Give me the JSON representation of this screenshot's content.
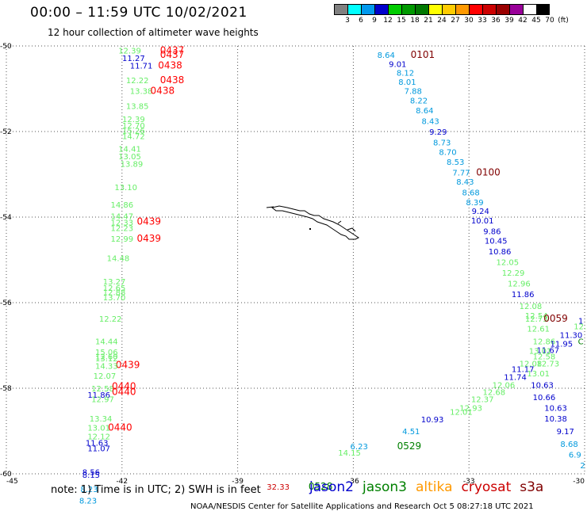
{
  "header": {
    "title": "00:00 – 11:59 UTC 10/02/2021",
    "subtitle": "12 hour collection of altimeter wave heights"
  },
  "colorbar": {
    "colors": [
      "#808080",
      "#00ffff",
      "#0099ee",
      "#0000cc",
      "#00cc00",
      "#009900",
      "#007700",
      "#ffff00",
      "#ffcc00",
      "#ff9900",
      "#ff0000",
      "#cc0000",
      "#990000",
      "#990099",
      "#ffffff",
      "#000000"
    ],
    "labels": [
      "3",
      "6",
      "9",
      "12",
      "15",
      "18",
      "21",
      "24",
      "27",
      "30",
      "33",
      "36",
      "39",
      "42",
      "45",
      "70",
      "(ft)"
    ]
  },
  "axes": {
    "lat_labels": [
      "-50",
      "-52",
      "-54",
      "-56",
      "-58",
      "-60"
    ],
    "lon_labels": [
      "-45",
      "-42",
      "-39",
      "-36",
      "-33",
      "-30"
    ]
  },
  "colors": {
    "jason2": "#0000cc",
    "jason3": "#008000",
    "altika": "#ff9900",
    "cryosat": "#cc0000",
    "s3a": "#800000",
    "light_green": "#66ee66",
    "light_blue": "#0099dd",
    "times_red": "#ff0000"
  },
  "tracks": {
    "left": [
      {
        "text": "12.39",
        "lat": -50.1,
        "lon": -41.8,
        "c": "light_green"
      },
      {
        "text": "0437",
        "lat": -50.1,
        "lon": -40.7,
        "c": "times_red"
      },
      {
        "text": "11.27",
        "lat": -50.28,
        "lon": -41.7,
        "c": "jason2"
      },
      {
        "text": "0437",
        "lat": -50.2,
        "lon": -40.7,
        "c": "times_red"
      },
      {
        "text": "11.71",
        "lat": -50.45,
        "lon": -41.5,
        "c": "jason2"
      },
      {
        "text": "0438",
        "lat": -50.45,
        "lon": -40.75,
        "c": "times_red"
      },
      {
        "text": "12.22",
        "lat": -50.8,
        "lon": -41.6,
        "c": "light_green"
      },
      {
        "text": "0438",
        "lat": -50.8,
        "lon": -40.7,
        "c": "times_red"
      },
      {
        "text": "13.38",
        "lat": -51.05,
        "lon": -41.5,
        "c": "light_green"
      },
      {
        "text": "0438",
        "lat": -51.05,
        "lon": -40.95,
        "c": "times_red"
      },
      {
        "text": "13.85",
        "lat": -51.4,
        "lon": -41.6,
        "c": "light_green"
      },
      {
        "text": "12.39",
        "lat": -51.7,
        "lon": -41.7,
        "c": "light_green"
      },
      {
        "text": "12.70",
        "lat": -51.85,
        "lon": -41.7,
        "c": "light_green"
      },
      {
        "text": "15.26",
        "lat": -51.97,
        "lon": -41.7,
        "c": "light_green"
      },
      {
        "text": "14.72",
        "lat": -52.1,
        "lon": -41.7,
        "c": "light_green"
      },
      {
        "text": "14.41",
        "lat": -52.4,
        "lon": -41.8,
        "c": "light_green"
      },
      {
        "text": "13.05",
        "lat": -52.57,
        "lon": -41.8,
        "c": "light_green"
      },
      {
        "text": "13.89",
        "lat": -52.75,
        "lon": -41.75,
        "c": "light_green"
      },
      {
        "text": "13.10",
        "lat": -53.3,
        "lon": -41.9,
        "c": "light_green"
      },
      {
        "text": "14.86",
        "lat": -53.7,
        "lon": -42.0,
        "c": "light_green"
      },
      {
        "text": "14.47",
        "lat": -53.97,
        "lon": -42.0,
        "c": "light_green"
      },
      {
        "text": "12.33",
        "lat": -54.12,
        "lon": -42.0,
        "c": "light_green"
      },
      {
        "text": "0439",
        "lat": -54.1,
        "lon": -41.3,
        "c": "times_red"
      },
      {
        "text": "12.23",
        "lat": -54.25,
        "lon": -42.0,
        "c": "light_green"
      },
      {
        "text": "12.99",
        "lat": -54.5,
        "lon": -42.0,
        "c": "light_green"
      },
      {
        "text": "0439",
        "lat": -54.5,
        "lon": -41.3,
        "c": "times_red"
      },
      {
        "text": "14.48",
        "lat": -54.95,
        "lon": -42.1,
        "c": "light_green"
      },
      {
        "text": "13.27",
        "lat": -55.5,
        "lon": -42.2,
        "c": "light_green"
      },
      {
        "text": "12.65",
        "lat": -55.65,
        "lon": -42.2,
        "c": "light_green"
      },
      {
        "text": "12.88",
        "lat": -55.75,
        "lon": -42.2,
        "c": "light_green"
      },
      {
        "text": "13.70",
        "lat": -55.87,
        "lon": -42.2,
        "c": "light_green"
      },
      {
        "text": "12.22",
        "lat": -56.37,
        "lon": -42.3,
        "c": "light_green"
      },
      {
        "text": "14.44",
        "lat": -56.9,
        "lon": -42.4,
        "c": "light_green"
      },
      {
        "text": "15.06",
        "lat": -57.15,
        "lon": -42.4,
        "c": "light_green"
      },
      {
        "text": "12.60",
        "lat": -57.25,
        "lon": -42.4,
        "c": "light_green"
      },
      {
        "text": "13.12",
        "lat": -57.3,
        "lon": -42.4,
        "c": "light_green"
      },
      {
        "text": "0439",
        "lat": -57.45,
        "lon": -41.85,
        "c": "times_red"
      },
      {
        "text": "14.33",
        "lat": -57.47,
        "lon": -42.4,
        "c": "light_green"
      },
      {
        "text": "12.07",
        "lat": -57.7,
        "lon": -42.45,
        "c": "light_green"
      },
      {
        "text": "12.58",
        "lat": -58.0,
        "lon": -42.5,
        "c": "light_green"
      },
      {
        "text": "0440",
        "lat": -57.95,
        "lon": -41.95,
        "c": "times_red"
      },
      {
        "text": "11.86",
        "lat": -58.15,
        "lon": -42.6,
        "c": "jason2"
      },
      {
        "text": "0440",
        "lat": -58.08,
        "lon": -41.95,
        "c": "times_red"
      },
      {
        "text": "12.97",
        "lat": -58.25,
        "lon": -42.5,
        "c": "light_green"
      },
      {
        "text": "13.34",
        "lat": -58.7,
        "lon": -42.55,
        "c": "light_green"
      },
      {
        "text": "13.01",
        "lat": -58.92,
        "lon": -42.6,
        "c": "light_green"
      },
      {
        "text": "0440",
        "lat": -58.92,
        "lon": -42.05,
        "c": "times_red"
      },
      {
        "text": "12.12",
        "lat": -59.12,
        "lon": -42.6,
        "c": "light_green"
      },
      {
        "text": "11.63",
        "lat": -59.27,
        "lon": -42.65,
        "c": "jason2"
      },
      {
        "text": "11.07",
        "lat": -59.4,
        "lon": -42.6,
        "c": "jason2"
      },
      {
        "text": "8.56",
        "lat": -59.95,
        "lon": -42.8,
        "c": "jason2"
      },
      {
        "text": "8.15",
        "lat": -60.02,
        "lon": -42.8,
        "c": "jason2"
      },
      {
        "text": "8.23",
        "lat": -60.35,
        "lon": -42.85,
        "c": "light_blue"
      },
      {
        "text": "8.23",
        "lat": -60.62,
        "lon": -42.88,
        "c": "light_blue"
      }
    ],
    "right": [
      {
        "text": "8.64",
        "lat": -50.2,
        "lon": -35.15,
        "c": "light_blue"
      },
      {
        "text": "0101",
        "lat": -50.2,
        "lon": -34.2,
        "c": "s3a"
      },
      {
        "text": "9.01",
        "lat": -50.42,
        "lon": -34.85,
        "c": "jason2"
      },
      {
        "text": "8.12",
        "lat": -50.62,
        "lon": -34.65,
        "c": "light_blue"
      },
      {
        "text": "8.01",
        "lat": -50.83,
        "lon": -34.6,
        "c": "light_blue"
      },
      {
        "text": "7.88",
        "lat": -51.05,
        "lon": -34.45,
        "c": "light_blue"
      },
      {
        "text": "8.22",
        "lat": -51.27,
        "lon": -34.3,
        "c": "light_blue"
      },
      {
        "text": "8.64",
        "lat": -51.5,
        "lon": -34.15,
        "c": "light_blue"
      },
      {
        "text": "8.43",
        "lat": -51.75,
        "lon": -34.0,
        "c": "light_blue"
      },
      {
        "text": "9.29",
        "lat": -52.0,
        "lon": -33.8,
        "c": "jason2"
      },
      {
        "text": "8.73",
        "lat": -52.25,
        "lon": -33.7,
        "c": "light_blue"
      },
      {
        "text": "8.70",
        "lat": -52.47,
        "lon": -33.55,
        "c": "light_blue"
      },
      {
        "text": "8.53",
        "lat": -52.7,
        "lon": -33.35,
        "c": "light_blue"
      },
      {
        "text": "7.77",
        "lat": -52.95,
        "lon": -33.2,
        "c": "light_blue"
      },
      {
        "text": "0100",
        "lat": -52.95,
        "lon": -32.5,
        "c": "s3a"
      },
      {
        "text": "8.43",
        "lat": -53.17,
        "lon": -33.1,
        "c": "light_blue"
      },
      {
        "text": "8.68",
        "lat": -53.42,
        "lon": -32.95,
        "c": "light_blue"
      },
      {
        "text": "8.39",
        "lat": -53.65,
        "lon": -32.85,
        "c": "light_blue"
      },
      {
        "text": "9.24",
        "lat": -53.85,
        "lon": -32.7,
        "c": "jason2"
      },
      {
        "text": "10.01",
        "lat": -54.07,
        "lon": -32.65,
        "c": "jason2"
      },
      {
        "text": "9.86",
        "lat": -54.32,
        "lon": -32.4,
        "c": "jason2"
      },
      {
        "text": "10.45",
        "lat": -54.55,
        "lon": -32.3,
        "c": "jason2"
      },
      {
        "text": "10.86",
        "lat": -54.8,
        "lon": -32.2,
        "c": "jason2"
      },
      {
        "text": "12.05",
        "lat": -55.05,
        "lon": -32.0,
        "c": "light_green"
      },
      {
        "text": "12.29",
        "lat": -55.3,
        "lon": -31.85,
        "c": "light_green"
      },
      {
        "text": "12.96",
        "lat": -55.55,
        "lon": -31.7,
        "c": "light_green"
      },
      {
        "text": "11.86",
        "lat": -55.8,
        "lon": -31.6,
        "c": "jason2"
      },
      {
        "text": "12.08",
        "lat": -56.07,
        "lon": -31.4,
        "c": "light_green"
      },
      {
        "text": "12.54",
        "lat": -56.3,
        "lon": -31.25,
        "c": "light_green"
      },
      {
        "text": "12.73",
        "lat": -56.37,
        "lon": -31.25,
        "c": "light_green"
      },
      {
        "text": "0059",
        "lat": -56.37,
        "lon": -30.75,
        "c": "s3a"
      },
      {
        "text": "12.",
        "lat": -56.55,
        "lon": -30.12,
        "c": "light_green"
      },
      {
        "text": "1",
        "lat": -56.42,
        "lon": -30.1,
        "c": "jason2"
      },
      {
        "text": "12.61",
        "lat": -56.6,
        "lon": -31.2,
        "c": "light_green"
      },
      {
        "text": "11.30",
        "lat": -56.75,
        "lon": -30.35,
        "c": "jason2"
      },
      {
        "text": "C",
        "lat": -56.9,
        "lon": -30.1,
        "c": "jason3"
      },
      {
        "text": "12.86",
        "lat": -56.9,
        "lon": -31.05,
        "c": "light_green"
      },
      {
        "text": "11.95",
        "lat": -56.95,
        "lon": -30.6,
        "c": "jason2"
      },
      {
        "text": "11.67",
        "lat": -57.1,
        "lon": -30.95,
        "c": "jason2"
      },
      {
        "text": "13.01",
        "lat": -57.12,
        "lon": -31.15,
        "c": "light_green"
      },
      {
        "text": "12.58",
        "lat": -57.25,
        "lon": -31.05,
        "c": "light_green"
      },
      {
        "text": "12.08",
        "lat": -57.42,
        "lon": -31.4,
        "c": "light_green"
      },
      {
        "text": "12.73",
        "lat": -57.42,
        "lon": -30.95,
        "c": "light_green"
      },
      {
        "text": "11.17",
        "lat": -57.55,
        "lon": -31.6,
        "c": "jason2"
      },
      {
        "text": "13.01",
        "lat": -57.65,
        "lon": -31.2,
        "c": "light_green"
      },
      {
        "text": "11.74",
        "lat": -57.73,
        "lon": -31.8,
        "c": "jason2"
      },
      {
        "text": "12.06",
        "lat": -57.92,
        "lon": -32.1,
        "c": "light_green"
      },
      {
        "text": "10.63",
        "lat": -57.92,
        "lon": -31.1,
        "c": "jason2"
      },
      {
        "text": "12.68",
        "lat": -58.08,
        "lon": -32.35,
        "c": "light_green"
      },
      {
        "text": "10.66",
        "lat": -58.2,
        "lon": -31.05,
        "c": "jason2"
      },
      {
        "text": "12.37",
        "lat": -58.25,
        "lon": -32.65,
        "c": "light_green"
      },
      {
        "text": "10.63",
        "lat": -58.45,
        "lon": -30.75,
        "c": "jason2"
      },
      {
        "text": "12.93",
        "lat": -58.45,
        "lon": -32.95,
        "c": "light_green"
      },
      {
        "text": "12.01",
        "lat": -58.55,
        "lon": -33.2,
        "c": "light_green"
      },
      {
        "text": "10.38",
        "lat": -58.7,
        "lon": -30.75,
        "c": "jason2"
      },
      {
        "text": "10.93",
        "lat": -58.72,
        "lon": -33.95,
        "c": "jason2"
      },
      {
        "text": "4.51",
        "lat": -59.0,
        "lon": -34.5,
        "c": "light_blue"
      },
      {
        "text": "9.17",
        "lat": -59.0,
        "lon": -30.5,
        "c": "jason2"
      },
      {
        "text": "8.68",
        "lat": -59.3,
        "lon": -30.4,
        "c": "light_blue"
      },
      {
        "text": "6.23",
        "lat": -59.35,
        "lon": -35.85,
        "c": "light_blue"
      },
      {
        "text": "0529",
        "lat": -59.35,
        "lon": -34.55,
        "c": "jason3"
      },
      {
        "text": "14.15",
        "lat": -59.5,
        "lon": -36.1,
        "c": "light_green"
      },
      {
        "text": "6.9",
        "lat": -59.55,
        "lon": -30.25,
        "c": "light_blue"
      },
      {
        "text": "2",
        "lat": -59.8,
        "lon": -30.05,
        "c": "light_blue"
      },
      {
        "text": "32.33",
        "lat": -60.3,
        "lon": -37.95,
        "c": "cryosat"
      },
      {
        "text": "0528",
        "lat": -60.3,
        "lon": -36.85,
        "c": "jason3"
      }
    ]
  },
  "footer": {
    "note": "note:  1) Time is in UTC; 2) SWH is in feet",
    "legend": [
      {
        "label": "jason2",
        "color": "#0000cc"
      },
      {
        "label": "jason3",
        "color": "#008000"
      },
      {
        "label": "altika",
        "color": "#ff9900"
      },
      {
        "label": "cryosat",
        "color": "#cc0000"
      },
      {
        "label": "s3a",
        "color": "#800000"
      }
    ],
    "credit": "NOAA/NESDIS Center for Satellite Applications and Research    Oct  5 08:27:18 UTC 2021"
  }
}
